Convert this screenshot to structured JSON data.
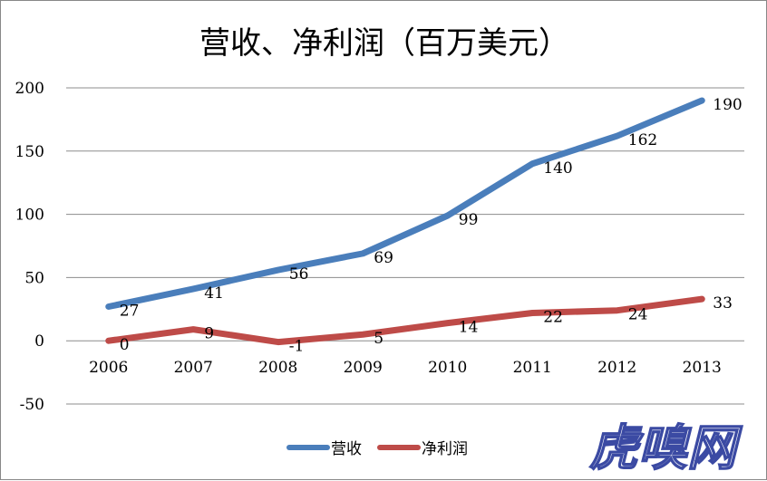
{
  "chart_data": {
    "type": "line",
    "title": "营收、净利润（百万美元）",
    "categories": [
      "2006",
      "2007",
      "2008",
      "2009",
      "2010",
      "2011",
      "2012",
      "2013"
    ],
    "series": [
      {
        "name": "营收",
        "values": [
          27,
          41,
          56,
          69,
          99,
          140,
          162,
          190
        ],
        "color": "#4a7ebb"
      },
      {
        "name": "净利润",
        "values": [
          0,
          9,
          -1,
          5,
          14,
          22,
          24,
          33
        ],
        "color": "#be4b48"
      }
    ],
    "yticks": [
      "200",
      "150",
      "100",
      "50",
      "0",
      "-50"
    ],
    "ylim": [
      -50,
      200
    ],
    "grid": true,
    "legend_position": "bottom"
  },
  "watermark": "虎嗅网"
}
